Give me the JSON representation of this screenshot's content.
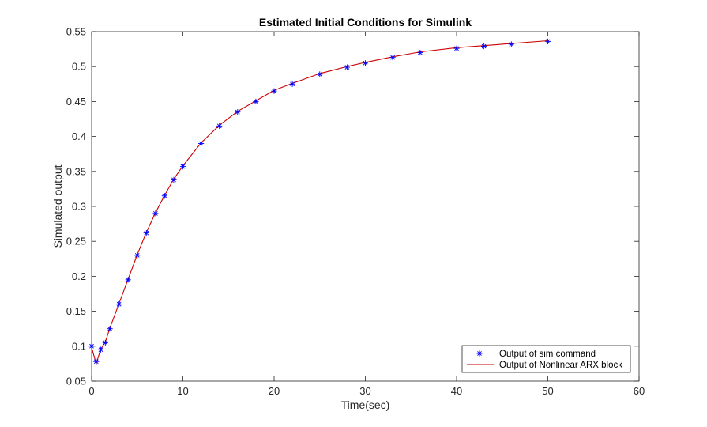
{
  "chart_data": {
    "type": "line",
    "title": "Estimated Initial Conditions for Simulink",
    "xlabel": "Time(sec)",
    "ylabel": "Simulated output",
    "xlim": [
      0,
      60
    ],
    "ylim": [
      0.05,
      0.55
    ],
    "xticks": [
      "0",
      "10",
      "20",
      "30",
      "40",
      "50",
      "60"
    ],
    "yticks": [
      "0.05",
      "0.1",
      "0.15",
      "0.2",
      "0.25",
      "0.3",
      "0.35",
      "0.4",
      "0.45",
      "0.5",
      "0.55"
    ],
    "grid": false,
    "legend_position": "bottom-right",
    "series": [
      {
        "name": "Output of sim command",
        "style": "markers",
        "marker": "asterisk",
        "color": "#0000ff",
        "x": [
          0,
          0.5,
          1,
          1.5,
          2,
          3,
          4,
          5,
          6,
          7,
          8,
          9,
          10,
          12,
          14,
          16,
          18,
          20,
          22,
          25,
          28,
          30,
          33,
          36,
          40,
          43,
          46,
          50
        ],
        "y": [
          0.1,
          0.078,
          0.095,
          0.105,
          0.125,
          0.16,
          0.195,
          0.23,
          0.262,
          0.29,
          0.315,
          0.338,
          0.357,
          0.39,
          0.415,
          0.435,
          0.45,
          0.465,
          0.475,
          0.489,
          0.499,
          0.505,
          0.513,
          0.52,
          0.526,
          0.529,
          0.532,
          0.536
        ]
      },
      {
        "name": "Output of Nonlinear ARX block",
        "style": "line",
        "color": "#cc0000",
        "x": [
          0,
          0.5,
          1,
          1.5,
          2,
          3,
          4,
          5,
          6,
          7,
          8,
          9,
          10,
          12,
          14,
          16,
          18,
          20,
          22,
          25,
          28,
          30,
          33,
          36,
          40,
          43,
          46,
          50
        ],
        "y": [
          0.098,
          0.075,
          0.096,
          0.106,
          0.126,
          0.161,
          0.196,
          0.231,
          0.263,
          0.291,
          0.316,
          0.339,
          0.358,
          0.391,
          0.416,
          0.436,
          0.451,
          0.466,
          0.476,
          0.49,
          0.5,
          0.506,
          0.514,
          0.521,
          0.527,
          0.53,
          0.533,
          0.537
        ]
      }
    ]
  }
}
